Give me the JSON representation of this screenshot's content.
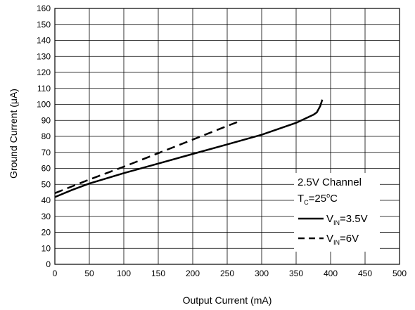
{
  "chart_data": {
    "type": "line",
    "xlabel": "Output Current (mA)",
    "ylabel": "Ground Current (μA)",
    "xlim": [
      0,
      500
    ],
    "ylim": [
      0,
      160
    ],
    "x_ticks": [
      0,
      50,
      100,
      150,
      200,
      250,
      300,
      350,
      400,
      450,
      500
    ],
    "y_ticks": [
      0,
      10,
      20,
      30,
      40,
      50,
      60,
      70,
      80,
      90,
      100,
      110,
      120,
      130,
      140,
      150,
      160
    ],
    "grid": true,
    "legend_position": "lower-right",
    "annotation": {
      "channel": "2.5V Channel",
      "temp_prefix": "T",
      "temp_sub": "C",
      "temp_value": "=25",
      "temp_degree": "o",
      "temp_unit": "C"
    },
    "series": [
      {
        "name": "V_IN=3.5V",
        "legend_prefix": "V",
        "legend_sub": "IN",
        "legend_suffix": "=3.5V",
        "style": "solid",
        "color": "#000000",
        "x": [
          0,
          25,
          50,
          100,
          150,
          200,
          250,
          300,
          350,
          375,
          380,
          385,
          388
        ],
        "y": [
          42,
          46.5,
          50.5,
          57,
          63,
          69,
          75,
          81,
          88.5,
          93.5,
          95,
          99,
          103
        ]
      },
      {
        "name": "V_IN=6V",
        "legend_prefix": "V",
        "legend_sub": "IN",
        "legend_suffix": "=6V",
        "style": "dashed",
        "color": "#000000",
        "x": [
          0,
          50,
          100,
          150,
          200,
          250,
          265
        ],
        "y": [
          44.5,
          53,
          61,
          69.5,
          78,
          86.5,
          89
        ]
      }
    ]
  }
}
